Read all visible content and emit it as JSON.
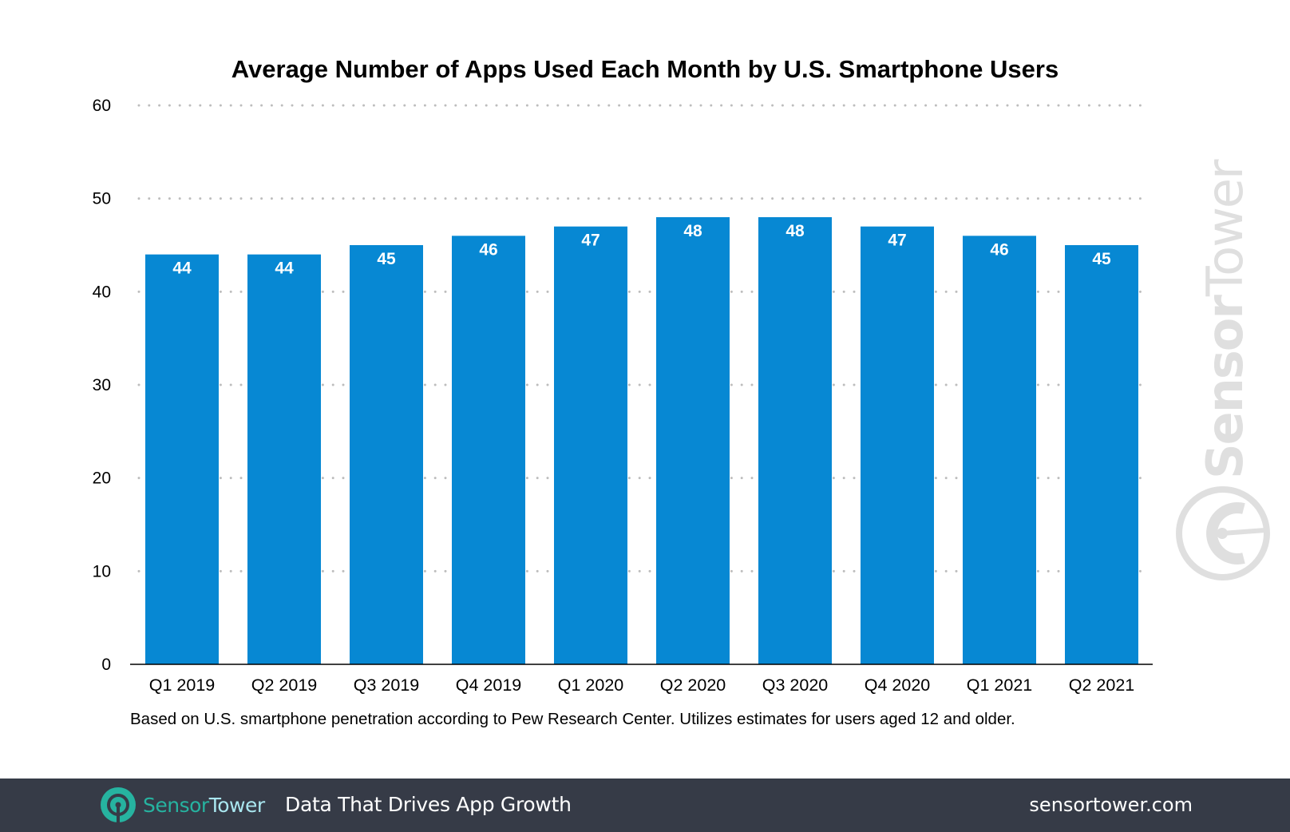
{
  "chart_data": {
    "type": "bar",
    "title": "Average Number of Apps Used Each Month by U.S. Smartphone Users",
    "categories": [
      "Q1 2019",
      "Q2 2019",
      "Q3 2019",
      "Q4 2019",
      "Q1 2020",
      "Q2 2020",
      "Q3 2020",
      "Q4 2020",
      "Q1 2021",
      "Q2 2021"
    ],
    "values": [
      44,
      44,
      45,
      46,
      47,
      48,
      48,
      47,
      46,
      45
    ],
    "xlabel": "",
    "ylabel": "",
    "ylim": [
      0,
      60
    ],
    "yticks": [
      0,
      10,
      20,
      30,
      40,
      50,
      60
    ],
    "grid": "dotted horizontal",
    "data_labels": "inside top of bar",
    "bar_color": "#0788d3",
    "footnote": "Based on U.S. smartphone penetration according to Pew Research Center. Utilizes estimates for users aged 12 and older."
  },
  "watermark": "SensorTower",
  "footer": {
    "brand_part1": "Sensor",
    "brand_part2": "Tower",
    "tagline": "Data That Drives App Growth",
    "website": "sensortower.com",
    "background": "#363b47"
  }
}
